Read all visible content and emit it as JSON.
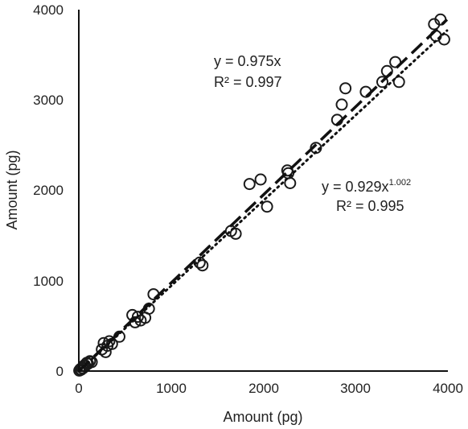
{
  "chart_data": {
    "type": "scatter",
    "title": "",
    "xlabel": "Amount (pg)",
    "ylabel": "Amount (pg)",
    "xlim": [
      0,
      4000
    ],
    "ylim": [
      0,
      4000
    ],
    "x_ticks": [
      "0",
      "1000",
      "2000",
      "3000",
      "4000"
    ],
    "y_ticks": [
      "0",
      "1000",
      "2000",
      "3000",
      "4000"
    ],
    "grid": false,
    "marker": "open-circle",
    "points": [
      [
        5,
        5
      ],
      [
        15,
        20
      ],
      [
        25,
        15
      ],
      [
        35,
        35
      ],
      [
        45,
        30
      ],
      [
        55,
        60
      ],
      [
        70,
        55
      ],
      [
        85,
        90
      ],
      [
        100,
        80
      ],
      [
        120,
        110
      ],
      [
        140,
        100
      ],
      [
        250,
        240
      ],
      [
        270,
        310
      ],
      [
        290,
        210
      ],
      [
        310,
        280
      ],
      [
        330,
        330
      ],
      [
        360,
        300
      ],
      [
        440,
        380
      ],
      [
        580,
        620
      ],
      [
        610,
        540
      ],
      [
        640,
        600
      ],
      [
        670,
        560
      ],
      [
        720,
        590
      ],
      [
        760,
        690
      ],
      [
        810,
        850
      ],
      [
        1310,
        1200
      ],
      [
        1340,
        1170
      ],
      [
        1650,
        1550
      ],
      [
        1700,
        1520
      ],
      [
        1850,
        2070
      ],
      [
        1970,
        2120
      ],
      [
        2040,
        1820
      ],
      [
        2260,
        2220
      ],
      [
        2270,
        2190
      ],
      [
        2290,
        2080
      ],
      [
        2570,
        2470
      ],
      [
        2800,
        2780
      ],
      [
        2850,
        2950
      ],
      [
        2890,
        3130
      ],
      [
        3110,
        3090
      ],
      [
        3290,
        3200
      ],
      [
        3340,
        3320
      ],
      [
        3430,
        3420
      ],
      [
        3470,
        3200
      ],
      [
        3850,
        3840
      ],
      [
        3870,
        3710
      ],
      [
        3920,
        3890
      ],
      [
        3960,
        3670
      ]
    ],
    "fits": [
      {
        "style": "dashed",
        "label_line1": "y = 0.975x",
        "label_line2": "R² = 0.997",
        "model": "linear",
        "a": 0.975,
        "b": 1
      },
      {
        "style": "dotted",
        "label_line1_base": "y = 0.929x",
        "label_line1_exp": "1.002",
        "label_line2": "R² = 0.995",
        "model": "power",
        "a": 0.929,
        "b": 1.002
      }
    ],
    "series_color": "#1a1a1a"
  }
}
